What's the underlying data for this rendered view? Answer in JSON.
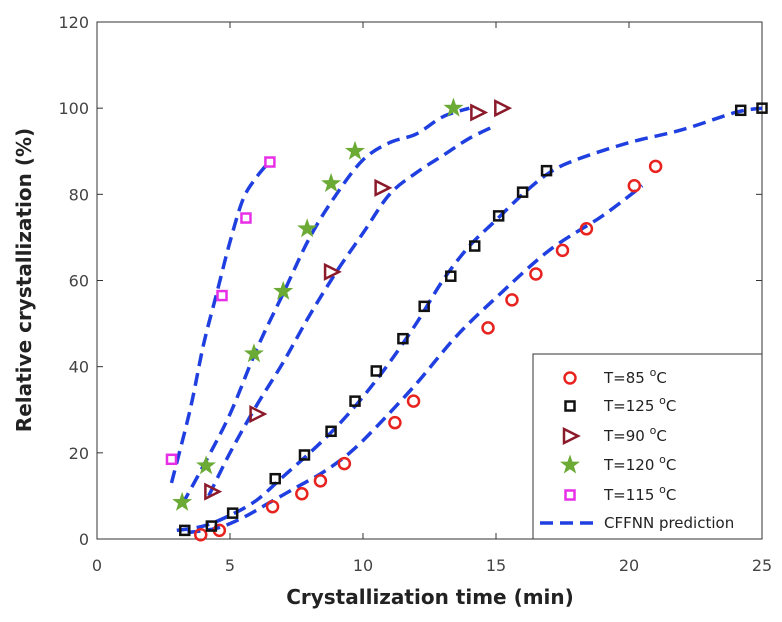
{
  "chart_data": {
    "type": "scatter",
    "xlabel": "Crystallization time (min)",
    "ylabel": "Relative crystallization (%)",
    "xlim": [
      0,
      25
    ],
    "ylim": [
      0,
      120
    ],
    "xticks": [
      0,
      5,
      10,
      15,
      20,
      25
    ],
    "yticks": [
      0,
      20,
      40,
      60,
      80,
      100,
      120
    ],
    "grid": false,
    "legend_position": "bottom-right",
    "series": [
      {
        "name": "T=85 °C",
        "label_main": "T=85",
        "label_unit": "C",
        "marker": "circle",
        "color": "#e8231f",
        "x": [
          3.9,
          4.6,
          6.6,
          7.7,
          8.4,
          9.3,
          11.2,
          11.9,
          14.7,
          15.6,
          16.5,
          17.5,
          18.4,
          20.2,
          21.0
        ],
        "y": [
          1,
          2,
          7.5,
          10.5,
          13.5,
          17.5,
          27,
          32,
          49,
          55.5,
          61.5,
          67,
          72,
          82,
          86.5
        ]
      },
      {
        "name": "T=125 °C",
        "label_main": "T=125",
        "label_unit": "C",
        "marker": "square",
        "color": "#111111",
        "x": [
          3.3,
          4.3,
          5.1,
          6.7,
          7.8,
          8.8,
          9.7,
          10.5,
          11.5,
          12.3,
          13.3,
          14.2,
          15.1,
          16.0,
          16.9,
          24.2,
          25.0
        ],
        "y": [
          2,
          3,
          6,
          14,
          19.5,
          25,
          32,
          39,
          46.5,
          54,
          61,
          68,
          75,
          80.5,
          85.5,
          99.5,
          100
        ]
      },
      {
        "name": "T=90 °C",
        "label_main": "T=90",
        "label_unit": "C",
        "marker": "triangle-right",
        "color": "#8b1a2b",
        "x": [
          4.3,
          6.0,
          8.8,
          10.7,
          14.3,
          15.2
        ],
        "y": [
          11,
          29,
          62,
          81.5,
          99,
          100
        ]
      },
      {
        "name": "T=120 °C",
        "label_main": "T=120",
        "label_unit": "C",
        "marker": "star",
        "color": "#6aaa35",
        "x": [
          3.2,
          4.1,
          5.9,
          7.0,
          7.9,
          8.8,
          9.7,
          13.4
        ],
        "y": [
          8.5,
          17,
          43,
          57.5,
          72,
          82.5,
          90,
          100
        ]
      },
      {
        "name": "T=115 °C",
        "label_main": "T=115",
        "label_unit": "C",
        "marker": "square",
        "color": "#e82fe8",
        "x": [
          2.8,
          4.7,
          5.6,
          6.5
        ],
        "y": [
          18.5,
          56.5,
          74.5,
          87.5
        ]
      }
    ],
    "prediction_label": "CFFNN prediction",
    "prediction_color": "#1f3fe0",
    "prediction_curves": [
      {
        "x": [
          3.4,
          4.5,
          5.5,
          6.5,
          7.5,
          8.5,
          9.5,
          10.5,
          12.0,
          13.5,
          15.0,
          17.0,
          19.0,
          20.5
        ],
        "y": [
          1.5,
          2.5,
          5,
          8.5,
          12,
          15.5,
          20,
          26,
          36,
          47,
          56,
          67,
          75,
          82
        ]
      },
      {
        "x": [
          3.0,
          4.0,
          5.0,
          6.0,
          7.0,
          8.0,
          9.0,
          10.0,
          11.0,
          12.0,
          13.0,
          14.0,
          15.0,
          16.0,
          17.0,
          18.0,
          20.0,
          22.0,
          24.0,
          25.0
        ],
        "y": [
          2,
          3,
          5.5,
          9,
          14.5,
          20,
          26,
          33,
          41,
          50,
          60,
          68,
          74,
          80,
          85,
          88,
          92,
          95,
          99,
          100
        ]
      },
      {
        "x": [
          4.2,
          5.0,
          6.0,
          7.0,
          8.0,
          9.0,
          10.0,
          11.0,
          12.0,
          13.0,
          14.0,
          15.0
        ],
        "y": [
          10,
          20,
          31,
          41,
          52,
          62,
          71,
          80,
          85,
          89,
          93,
          96
        ]
      },
      {
        "x": [
          3.2,
          4.0,
          5.0,
          6.0,
          7.0,
          8.0,
          9.0,
          10.0,
          11.0,
          12.0,
          13.0,
          14.0
        ],
        "y": [
          8,
          17,
          29,
          44,
          57,
          70,
          80,
          88,
          92,
          94,
          98,
          100
        ]
      },
      {
        "x": [
          2.8,
          3.5,
          4.0,
          4.5,
          5.0,
          5.5,
          6.0,
          6.4
        ],
        "y": [
          13,
          30,
          45,
          57,
          69,
          79,
          84,
          87
        ]
      }
    ]
  }
}
